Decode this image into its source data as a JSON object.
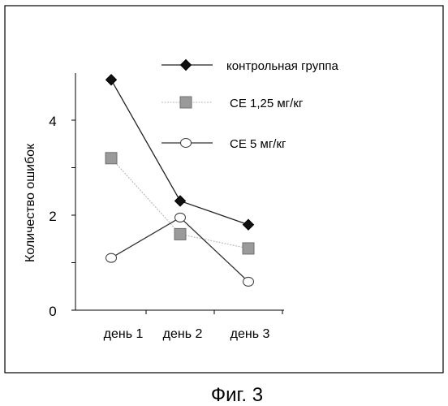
{
  "caption": "Фиг. 3",
  "chart_data": {
    "type": "line",
    "title": "",
    "xlabel": "",
    "ylabel": "Количество ошибок",
    "categories": [
      "день 1",
      "день 2",
      "день 3"
    ],
    "ylim": [
      0,
      5
    ],
    "yticks": [
      "0",
      "2",
      "4"
    ],
    "grid": false,
    "legend_position": "top-right",
    "series": [
      {
        "name": "контрольная группа",
        "values": [
          4.85,
          2.3,
          1.8
        ],
        "marker": "diamond-filled",
        "color": "#000000",
        "line_color": "#222222"
      },
      {
        "name": "СЕ 1,25 мг/кг",
        "values": [
          3.2,
          1.6,
          1.3
        ],
        "marker": "square-gray",
        "color": "#9a9a9a",
        "line_color": "#b8b8b8"
      },
      {
        "name": "СЕ 5 мг/кг",
        "values": [
          1.1,
          1.95,
          0.6
        ],
        "marker": "circle-open",
        "color": "#555555",
        "line_color": "#333333"
      }
    ]
  }
}
